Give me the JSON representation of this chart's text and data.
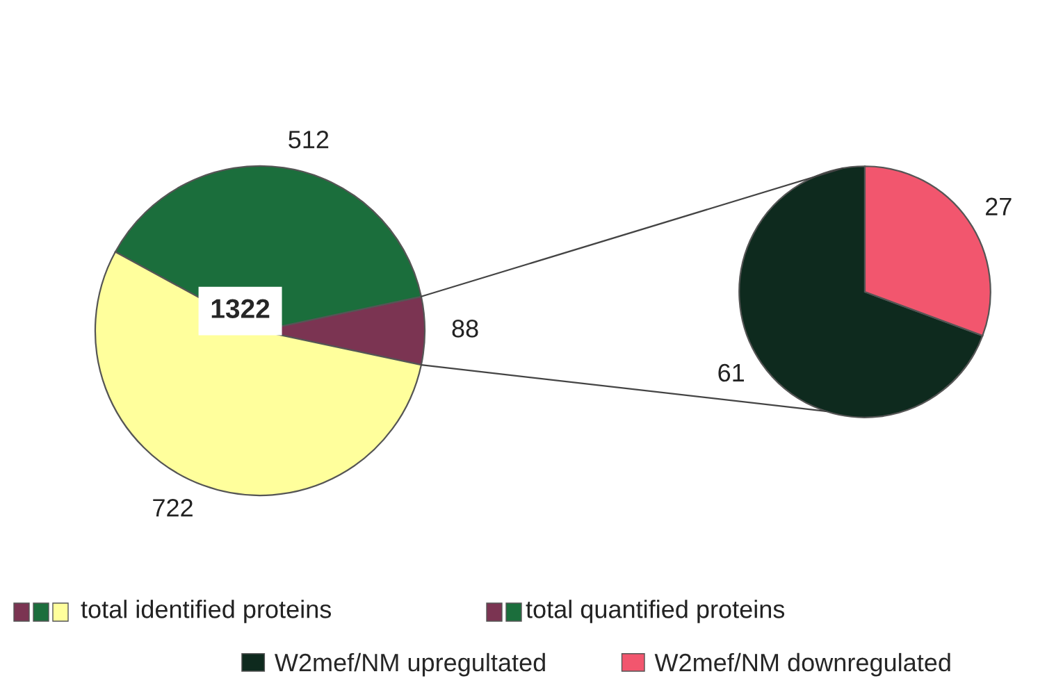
{
  "chart_data": [
    {
      "type": "pie",
      "categories": [
        null,
        null,
        null
      ],
      "values": [
        88,
        512,
        722
      ],
      "colors": [
        "#7b3452",
        "#1b6e3c",
        "#ffff9c"
      ],
      "data_labels": true,
      "annotations": [
        "1322",
        "total identified proteins",
        "total quantified proteins"
      ]
    },
    {
      "type": "pie",
      "categories": [
        "W2mef/NM upregultated",
        "W2mef/NM downregulated"
      ],
      "values": [
        61,
        27
      ],
      "colors": [
        "#0e2a1e",
        "#f2566e"
      ],
      "data_labels": true,
      "legend": "bottom"
    }
  ]
}
